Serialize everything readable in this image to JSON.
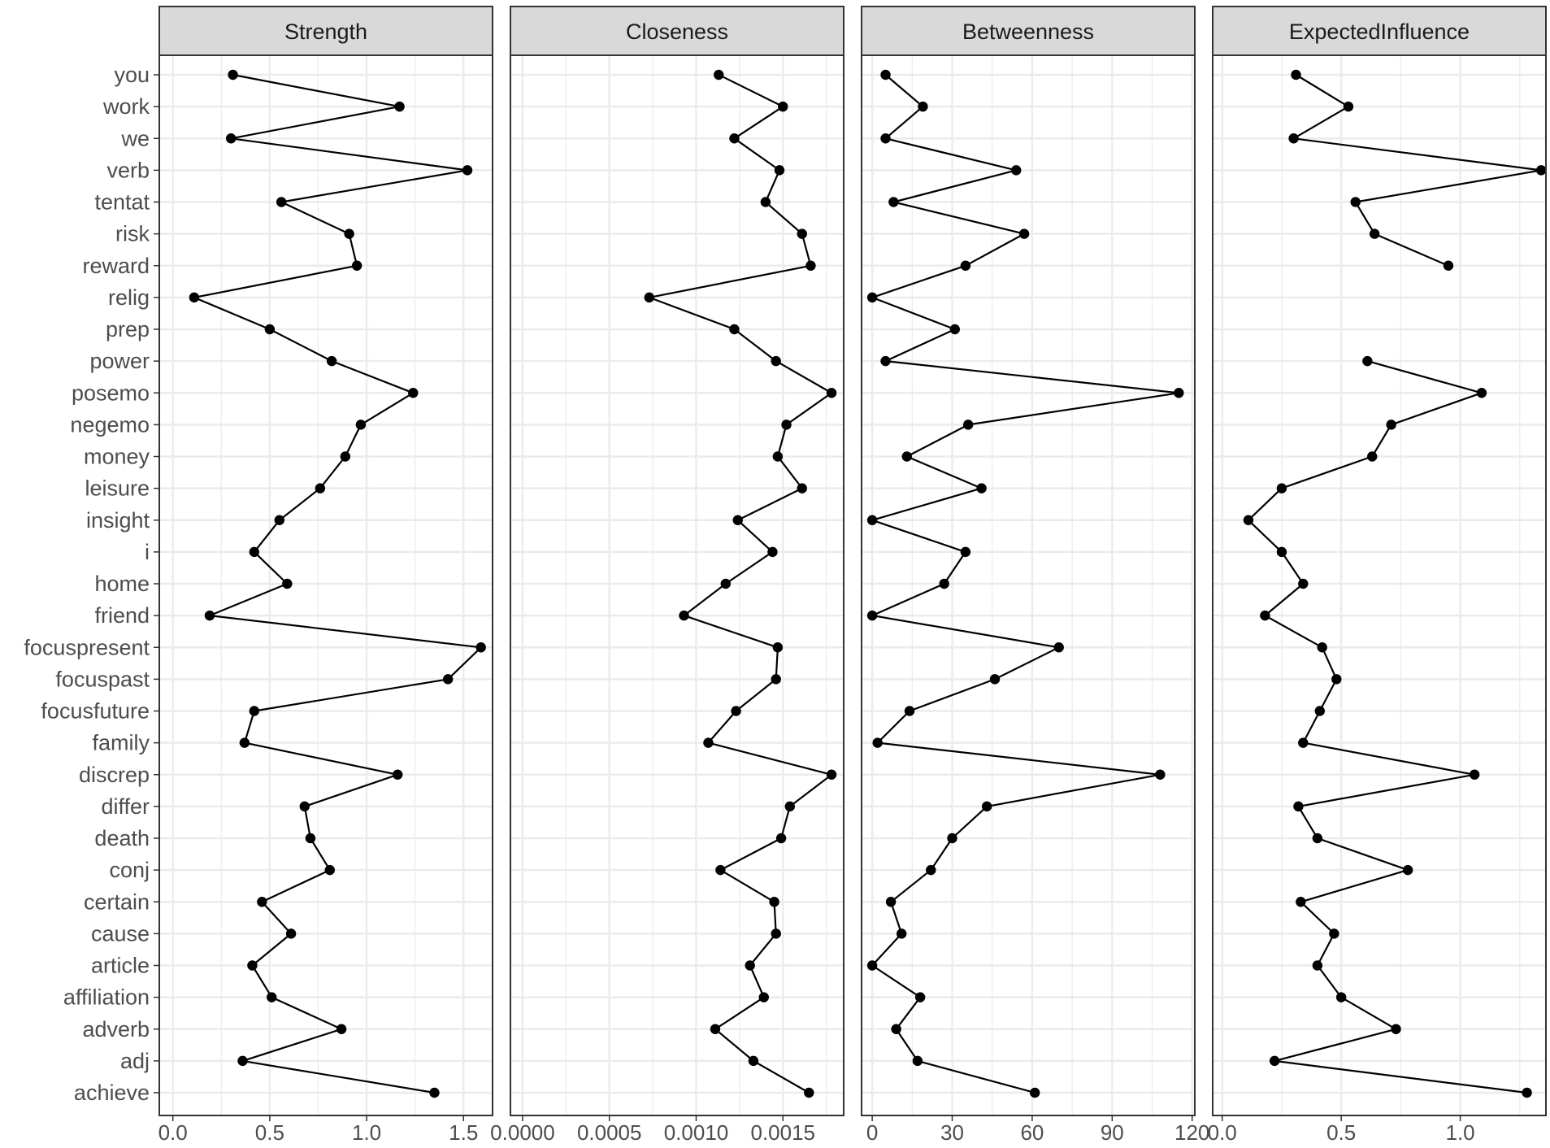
{
  "chart_data": {
    "type": "line",
    "layout": "faceted-small-multiples",
    "grid": true,
    "legend": "none",
    "colors": {
      "line": "#000000",
      "point": "#000000",
      "strip": "#d9d9d9",
      "grid": "#ebebeb",
      "border": "#333333"
    },
    "categories": [
      "you",
      "work",
      "we",
      "verb",
      "tentat",
      "risk",
      "reward",
      "relig",
      "prep",
      "power",
      "posemo",
      "negemo",
      "money",
      "leisure",
      "insight",
      "i",
      "home",
      "friend",
      "focuspresent",
      "focuspast",
      "focusfuture",
      "family",
      "discrep",
      "differ",
      "death",
      "conj",
      "certain",
      "cause",
      "article",
      "affiliation",
      "adverb",
      "adj",
      "achieve"
    ],
    "panels": [
      {
        "title": "Strength",
        "xlim": [
          -0.07,
          1.65
        ],
        "xticks": [
          0,
          0.5,
          1,
          1.5
        ],
        "xtick_labels": [
          "0.0",
          "0.5",
          "1.0",
          "1.5"
        ],
        "values": [
          0.31,
          1.17,
          0.3,
          1.52,
          0.56,
          0.91,
          0.95,
          0.11,
          0.5,
          0.82,
          1.24,
          0.97,
          0.89,
          0.76,
          0.55,
          0.42,
          0.59,
          0.19,
          1.59,
          1.42,
          0.42,
          0.37,
          1.16,
          0.68,
          0.71,
          0.81,
          0.46,
          0.61,
          0.41,
          0.51,
          0.87,
          0.36,
          1.35
        ]
      },
      {
        "title": "Closeness",
        "xlim": [
          -7e-05,
          0.00185
        ],
        "xticks": [
          0,
          0.0005,
          0.001,
          0.0015
        ],
        "xtick_labels": [
          "0.0000",
          "0.0005",
          "0.0010",
          "0.0015"
        ],
        "values": [
          0.00113,
          0.0015,
          0.00122,
          0.00148,
          0.0014,
          0.00161,
          0.00166,
          0.00073,
          0.00122,
          0.00146,
          0.00178,
          0.00152,
          0.00147,
          0.00161,
          0.00124,
          0.00144,
          0.00117,
          0.00093,
          0.00147,
          0.00146,
          0.00123,
          0.00107,
          0.00178,
          0.00154,
          0.00149,
          0.00114,
          0.00145,
          0.00146,
          0.00131,
          0.00139,
          0.00111,
          0.00133,
          0.00165
        ]
      },
      {
        "title": "Betweenness",
        "xlim": [
          -4,
          121
        ],
        "xticks": [
          0,
          30,
          60,
          90,
          120
        ],
        "xtick_labels": [
          "0",
          "30",
          "60",
          "90",
          "120"
        ],
        "values": [
          5,
          19,
          5,
          54,
          8,
          57,
          35,
          0,
          31,
          5,
          115,
          36,
          13,
          41,
          0,
          35,
          27,
          0,
          70,
          46,
          14,
          2,
          108,
          43,
          30,
          22,
          7,
          11,
          0,
          18,
          9,
          17,
          61
        ]
      },
      {
        "title": "ExpectedInfluence",
        "xlim": [
          -0.04,
          1.36
        ],
        "xticks": [
          0,
          0.5,
          1
        ],
        "xtick_labels": [
          "0.0",
          "0.5",
          "1.0"
        ],
        "values": [
          0.31,
          0.53,
          0.3,
          1.34,
          0.56,
          0.64,
          0.95,
          null,
          null,
          0.61,
          1.09,
          0.71,
          0.63,
          0.25,
          0.11,
          0.25,
          0.34,
          0.18,
          0.42,
          0.48,
          0.41,
          0.34,
          1.06,
          0.32,
          0.4,
          0.78,
          0.33,
          0.47,
          0.4,
          0.5,
          0.73,
          0.22,
          1.28
        ]
      }
    ]
  }
}
